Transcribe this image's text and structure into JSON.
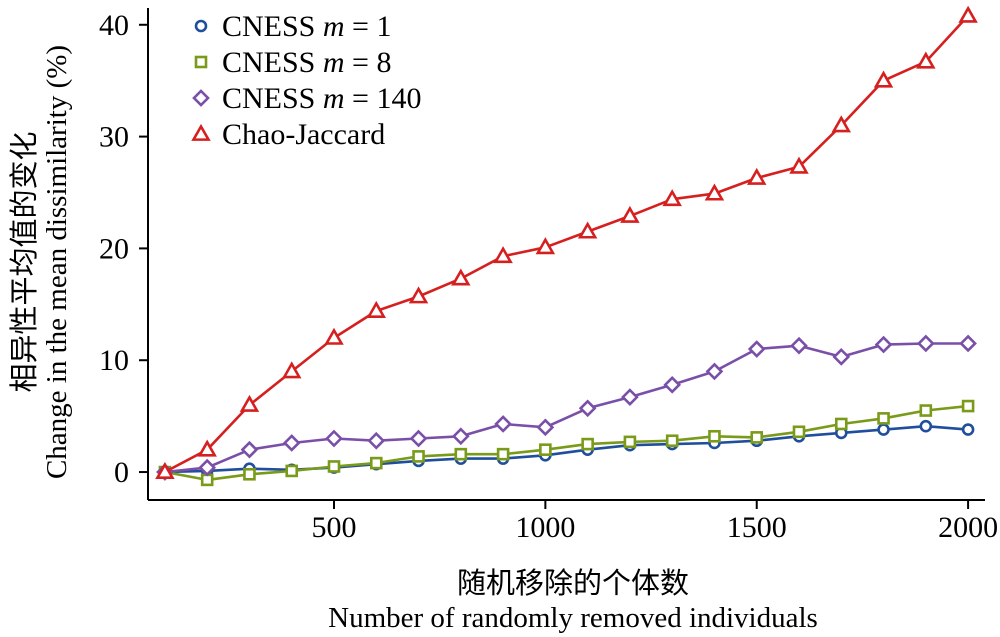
{
  "chart_data": {
    "type": "line",
    "xlabel_cn": "随机移除的个体数",
    "xlabel": "Number of randomly removed individuals",
    "ylabel_cn": "相异性平均值的变化",
    "ylabel": "Change in the mean dissimilarity (%)",
    "xlim": [
      60,
      2040
    ],
    "ylim": [
      -2.5,
      41.5
    ],
    "xticks": [
      500,
      1000,
      1500,
      2000
    ],
    "yticks": [
      0,
      10,
      20,
      30,
      40
    ],
    "grid": false,
    "legend_position": "top-left",
    "x": [
      100,
      200,
      300,
      400,
      500,
      600,
      700,
      800,
      900,
      1000,
      1100,
      1200,
      1300,
      1400,
      1500,
      1600,
      1700,
      1800,
      1900,
      2000
    ],
    "series": [
      {
        "name": "CNESS m = 1",
        "legend_prefix": "CNESS ",
        "legend_var": "m",
        "legend_suffix": " = 1",
        "marker": "circle",
        "color": "#1f4e9c",
        "values": [
          0,
          0.1,
          0.3,
          0.2,
          0.4,
          0.7,
          1.0,
          1.2,
          1.2,
          1.5,
          2.0,
          2.4,
          2.5,
          2.6,
          2.8,
          3.2,
          3.5,
          3.8,
          4.1,
          3.8
        ]
      },
      {
        "name": "CNESS m = 8",
        "legend_prefix": "CNESS ",
        "legend_var": "m",
        "legend_suffix": " = 8",
        "marker": "square",
        "color": "#7a9a1a",
        "values": [
          0,
          -0.7,
          -0.2,
          0.1,
          0.5,
          0.8,
          1.4,
          1.6,
          1.6,
          2.0,
          2.5,
          2.7,
          2.8,
          3.2,
          3.1,
          3.6,
          4.3,
          4.8,
          5.5,
          5.9
        ]
      },
      {
        "name": "CNESS m = 140",
        "legend_prefix": "CNESS ",
        "legend_var": "m",
        "legend_suffix": " = 140",
        "marker": "diamond",
        "color": "#7a4fa8",
        "values": [
          0,
          0.4,
          2.0,
          2.6,
          3.0,
          2.8,
          3.0,
          3.2,
          4.3,
          4.0,
          5.7,
          6.7,
          7.8,
          9.0,
          11.0,
          11.3,
          10.3,
          11.4,
          11.5,
          11.5
        ]
      },
      {
        "name": "Chao-Jaccard",
        "legend_prefix": "Chao-Jaccard",
        "legend_var": "",
        "legend_suffix": "",
        "marker": "triangle",
        "color": "#d62020",
        "values": [
          0,
          2.0,
          6.0,
          9.0,
          12.0,
          14.4,
          15.7,
          17.3,
          19.3,
          20.1,
          21.5,
          22.9,
          24.4,
          24.9,
          26.3,
          27.3,
          31.0,
          35.0,
          36.7,
          40.8
        ]
      }
    ]
  }
}
